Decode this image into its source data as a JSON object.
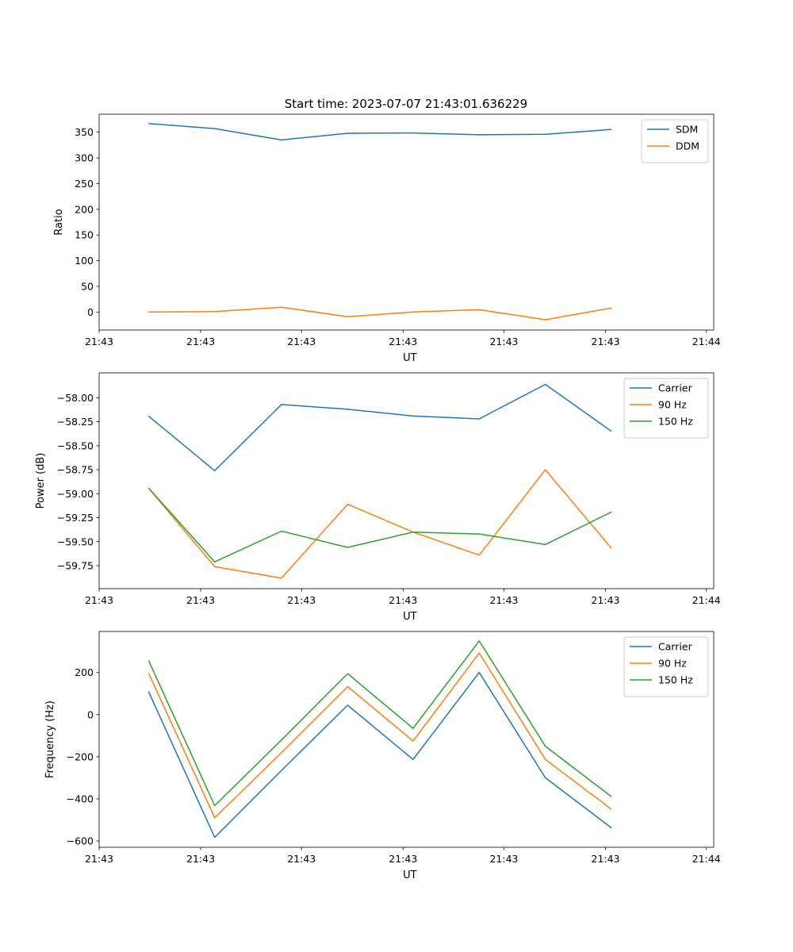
{
  "figure_title": "Start time: 2023-07-07 21:43:01.636229",
  "colors": {
    "blue": "#1f77b4",
    "orange": "#ff7f0e",
    "green": "#2ca02c"
  },
  "chart_data": [
    {
      "type": "line",
      "title": "Start time: 2023-07-07 21:43:01.636229",
      "xlabel": "UT",
      "ylabel": "Ratio",
      "xlim": [
        0,
        9.2
      ],
      "ylim": [
        -35,
        385
      ],
      "yticks": [
        0,
        50,
        100,
        150,
        200,
        250,
        300,
        350
      ],
      "ytick_labels": [
        "0",
        "50",
        "100",
        "150",
        "200",
        "250",
        "300",
        "350"
      ],
      "xticks": [
        0,
        1.52,
        3.03,
        4.55,
        6.06,
        7.58,
        9.09
      ],
      "xtick_labels": [
        "21:43",
        "21:43",
        "21:43",
        "21:43",
        "21:43",
        "21:43",
        "21:44"
      ],
      "x": [
        0.74,
        1.73,
        2.73,
        3.72,
        4.7,
        5.69,
        6.68,
        7.67
      ],
      "legend_position": "top-right",
      "series": [
        {
          "name": "SDM",
          "color": "#1f77b4",
          "values": [
            367,
            357,
            335,
            348,
            348.5,
            345,
            346,
            355.5
          ]
        },
        {
          "name": "DDM",
          "color": "#ff7f0e",
          "values": [
            0,
            1,
            9.5,
            -9,
            0,
            4.5,
            -15,
            8
          ]
        }
      ]
    },
    {
      "type": "line",
      "title": "",
      "xlabel": "UT",
      "ylabel": "Power (dB)",
      "xlim": [
        0,
        9.2
      ],
      "ylim": [
        -59.99,
        -57.74
      ],
      "yticks": [
        -59.75,
        -59.5,
        -59.25,
        -59.0,
        -58.75,
        -58.5,
        -58.25,
        -58.0
      ],
      "ytick_labels": [
        "−59.75",
        "−59.50",
        "−59.25",
        "−59.00",
        "−58.75",
        "−58.50",
        "−58.25",
        "−58.00"
      ],
      "xticks": [
        0,
        1.52,
        3.03,
        4.55,
        6.06,
        7.58,
        9.09
      ],
      "xtick_labels": [
        "21:43",
        "21:43",
        "21:43",
        "21:43",
        "21:43",
        "21:43",
        "21:44"
      ],
      "x": [
        0.74,
        1.73,
        2.73,
        3.72,
        4.7,
        5.69,
        6.68,
        7.67
      ],
      "legend_position": "top-right",
      "series": [
        {
          "name": "Carrier",
          "color": "#1f77b4",
          "values": [
            -58.19,
            -58.76,
            -58.07,
            -58.12,
            -58.19,
            -58.22,
            -57.86,
            -58.35
          ]
        },
        {
          "name": "90 Hz",
          "color": "#ff7f0e",
          "values": [
            -58.94,
            -59.76,
            -59.88,
            -59.11,
            -59.4,
            -59.64,
            -58.75,
            -59.57
          ]
        },
        {
          "name": "150 Hz",
          "color": "#2ca02c",
          "values": [
            -58.94,
            -59.71,
            -59.39,
            -59.56,
            -59.4,
            -59.42,
            -59.53,
            -59.19
          ]
        }
      ]
    },
    {
      "type": "line",
      "title": "",
      "xlabel": "UT",
      "ylabel": "Frequency (Hz)",
      "xlim": [
        0,
        9.2
      ],
      "ylim": [
        -630,
        395
      ],
      "yticks": [
        -600,
        -400,
        -200,
        0,
        200
      ],
      "ytick_labels": [
        "−600",
        "−400",
        "−200",
        "0",
        "200"
      ],
      "xticks": [
        0,
        1.52,
        3.03,
        4.55,
        6.06,
        7.58,
        9.09
      ],
      "xtick_labels": [
        "21:43",
        "21:43",
        "21:43",
        "21:43",
        "21:43",
        "21:43",
        "21:44"
      ],
      "x": [
        0.74,
        1.73,
        2.73,
        3.72,
        4.7,
        5.69,
        6.68,
        7.67
      ],
      "legend_position": "top-right",
      "series": [
        {
          "name": "Carrier",
          "color": "#1f77b4",
          "values": [
            110,
            -583,
            -265,
            45,
            -213,
            200,
            -300,
            -538
          ]
        },
        {
          "name": "90 Hz",
          "color": "#ff7f0e",
          "values": [
            198,
            -490,
            -180,
            133,
            -125,
            293,
            -213,
            -450
          ]
        },
        {
          "name": "150 Hz",
          "color": "#2ca02c",
          "values": [
            258,
            -432,
            -120,
            195,
            -65,
            350,
            -150,
            -390
          ]
        }
      ]
    }
  ]
}
